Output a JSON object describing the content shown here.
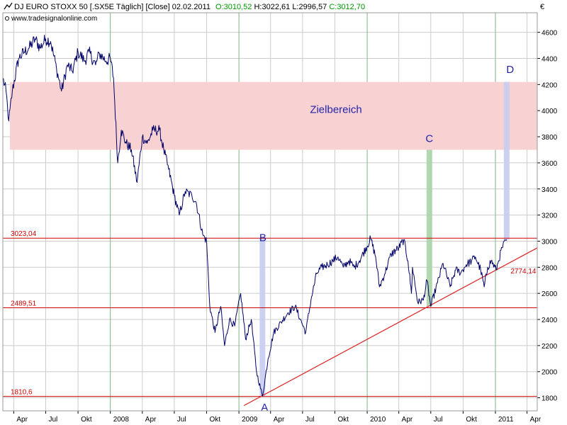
{
  "header": {
    "instrument": "DJ EURO STOXX 50 [.SX5E  Täglich] [Close] 02.02.2011",
    "open": "O:3010,52",
    "high": "H:3022,61",
    "low": "L:2996,57",
    "close": "C:3012,70",
    "source": "www.tradesignalonline.com",
    "currency": "€"
  },
  "colors": {
    "price_line": "#000066",
    "level_line": "#cc0000",
    "trend_line": "#dd2222",
    "target_zone": "#f8d2d2",
    "bar_blue": "#c8ccf0",
    "bar_green": "#a8d4a8",
    "grid_year": "#7fb57f",
    "grid": "#cccccc",
    "label_blue": "#2222aa"
  },
  "chart_data": {
    "type": "line",
    "title": "DJ EURO STOXX 50",
    "xlabel": "",
    "ylabel": "€",
    "x_range": [
      "2007-03-01",
      "2011-04-30"
    ],
    "ylim": [
      1700,
      4750
    ],
    "y_ticks": [
      1800,
      2000,
      2200,
      2400,
      2600,
      2800,
      3000,
      3200,
      3400,
      3600,
      3800,
      4000,
      4200,
      4400,
      4600
    ],
    "y_tick_labels": [
      "1800",
      "2000",
      "2200",
      "2400",
      "2600",
      "2800",
      "3000",
      "3200",
      "3400",
      "3600",
      "3800",
      "4000",
      "4200",
      "4400",
      "4600"
    ],
    "x_ticks": [
      {
        "date": "2007-04-01",
        "label": "Apr",
        "year": false
      },
      {
        "date": "2007-07-01",
        "label": "Jul",
        "year": false
      },
      {
        "date": "2007-10-01",
        "label": "Okt",
        "year": false
      },
      {
        "date": "2008-01-01",
        "label": "2008",
        "year": true
      },
      {
        "date": "2008-04-01",
        "label": "Apr",
        "year": false
      },
      {
        "date": "2008-07-01",
        "label": "Jul",
        "year": false
      },
      {
        "date": "2008-10-01",
        "label": "Okt",
        "year": false
      },
      {
        "date": "2009-01-01",
        "label": "2009",
        "year": true
      },
      {
        "date": "2009-04-01",
        "label": "Apr",
        "year": false
      },
      {
        "date": "2009-07-01",
        "label": "Jul",
        "year": false
      },
      {
        "date": "2009-10-01",
        "label": "Okt",
        "year": false
      },
      {
        "date": "2010-01-01",
        "label": "2010",
        "year": true
      },
      {
        "date": "2010-04-01",
        "label": "Apr",
        "year": false
      },
      {
        "date": "2010-07-01",
        "label": "Jul",
        "year": false
      },
      {
        "date": "2010-10-01",
        "label": "Okt",
        "year": false
      },
      {
        "date": "2011-01-01",
        "label": "2011",
        "year": true
      },
      {
        "date": "2011-04-01",
        "label": "Apr",
        "year": false
      }
    ],
    "series": [
      {
        "points": [
          [
            "2007-03-01",
            4250
          ],
          [
            "2007-03-10",
            4150
          ],
          [
            "2007-03-18",
            3920
          ],
          [
            "2007-03-28",
            4150
          ],
          [
            "2007-04-15",
            4400
          ],
          [
            "2007-05-01",
            4450
          ],
          [
            "2007-05-15",
            4480
          ],
          [
            "2007-06-01",
            4550
          ],
          [
            "2007-06-15",
            4480
          ],
          [
            "2007-07-01",
            4550
          ],
          [
            "2007-07-15",
            4530
          ],
          [
            "2007-08-01",
            4320
          ],
          [
            "2007-08-15",
            4150
          ],
          [
            "2007-09-01",
            4350
          ],
          [
            "2007-09-15",
            4300
          ],
          [
            "2007-10-01",
            4450
          ],
          [
            "2007-10-20",
            4380
          ],
          [
            "2007-11-01",
            4450
          ],
          [
            "2007-11-20",
            4350
          ],
          [
            "2007-12-01",
            4440
          ],
          [
            "2007-12-20",
            4380
          ],
          [
            "2008-01-01",
            4400
          ],
          [
            "2008-01-10",
            4250
          ],
          [
            "2008-01-22",
            3600
          ],
          [
            "2008-02-01",
            3850
          ],
          [
            "2008-02-15",
            3750
          ],
          [
            "2008-03-01",
            3700
          ],
          [
            "2008-03-17",
            3450
          ],
          [
            "2008-04-01",
            3800
          ],
          [
            "2008-04-15",
            3750
          ],
          [
            "2008-05-01",
            3850
          ],
          [
            "2008-05-20",
            3850
          ],
          [
            "2008-06-01",
            3700
          ],
          [
            "2008-06-15",
            3550
          ],
          [
            "2008-07-01",
            3350
          ],
          [
            "2008-07-15",
            3200
          ],
          [
            "2008-08-01",
            3380
          ],
          [
            "2008-08-20",
            3350
          ],
          [
            "2008-09-01",
            3300
          ],
          [
            "2008-09-20",
            3050
          ],
          [
            "2008-10-01",
            3000
          ],
          [
            "2008-10-10",
            2500
          ],
          [
            "2008-10-25",
            2300
          ],
          [
            "2008-11-10",
            2500
          ],
          [
            "2008-11-21",
            2200
          ],
          [
            "2008-12-05",
            2400
          ],
          [
            "2008-12-20",
            2350
          ],
          [
            "2009-01-06",
            2600
          ],
          [
            "2009-01-20",
            2250
          ],
          [
            "2009-02-05",
            2400
          ],
          [
            "2009-02-20",
            2000
          ],
          [
            "2009-03-09",
            1810
          ],
          [
            "2009-03-25",
            2100
          ],
          [
            "2009-04-10",
            2300
          ],
          [
            "2009-05-01",
            2380
          ],
          [
            "2009-05-20",
            2450
          ],
          [
            "2009-06-10",
            2500
          ],
          [
            "2009-06-25",
            2400
          ],
          [
            "2009-07-10",
            2300
          ],
          [
            "2009-07-25",
            2550
          ],
          [
            "2009-08-10",
            2750
          ],
          [
            "2009-08-25",
            2800
          ],
          [
            "2009-09-10",
            2820
          ],
          [
            "2009-09-25",
            2850
          ],
          [
            "2009-10-10",
            2880
          ],
          [
            "2009-10-25",
            2800
          ],
          [
            "2009-11-10",
            2850
          ],
          [
            "2009-11-25",
            2800
          ],
          [
            "2009-12-10",
            2850
          ],
          [
            "2010-01-11",
            3020
          ],
          [
            "2010-01-25",
            2880
          ],
          [
            "2010-02-05",
            2650
          ],
          [
            "2010-02-20",
            2750
          ],
          [
            "2010-03-10",
            2900
          ],
          [
            "2010-04-01",
            2950
          ],
          [
            "2010-04-15",
            3010
          ],
          [
            "2010-04-27",
            2850
          ],
          [
            "2010-05-07",
            2600
          ],
          [
            "2010-05-10",
            2800
          ],
          [
            "2010-05-25",
            2530
          ],
          [
            "2010-06-10",
            2550
          ],
          [
            "2010-06-20",
            2700
          ],
          [
            "2010-07-01",
            2500
          ],
          [
            "2010-07-20",
            2680
          ],
          [
            "2010-08-05",
            2830
          ],
          [
            "2010-08-25",
            2650
          ],
          [
            "2010-09-10",
            2780
          ],
          [
            "2010-09-25",
            2760
          ],
          [
            "2010-10-10",
            2820
          ],
          [
            "2010-10-25",
            2850
          ],
          [
            "2010-11-05",
            2880
          ],
          [
            "2010-11-20",
            2780
          ],
          [
            "2010-11-30",
            2650
          ],
          [
            "2010-12-10",
            2800
          ],
          [
            "2010-12-20",
            2850
          ],
          [
            "2011-01-03",
            2780
          ],
          [
            "2011-01-10",
            2850
          ],
          [
            "2011-01-20",
            2950
          ],
          [
            "2011-02-02",
            3012
          ]
        ]
      }
    ],
    "target_zone": {
      "label": "Zielbereich",
      "from": 3700,
      "to": 4220,
      "start": "2007-03-01",
      "end": "2011-05-01"
    },
    "levels": [
      {
        "value": 3023.04,
        "label": "3023,04"
      },
      {
        "value": 2489.51,
        "label": "2489,51"
      },
      {
        "value": 1810.6,
        "label": "1810,6"
      }
    ],
    "trendline": {
      "from": [
        "2009-01-15",
        1740
      ],
      "to": [
        "2011-05-01",
        2950
      ],
      "label": "2774,14",
      "label_at": [
        "2011-02-05",
        2774
      ]
    },
    "markers": [
      {
        "label": "A",
        "date": "2009-03-15",
        "value": 1700,
        "bar": null
      },
      {
        "label": "B",
        "date": "2009-03-10",
        "value": 3000,
        "bar": {
          "date": "2009-03-09",
          "from": 1810,
          "to": 3023,
          "color": "blue"
        }
      },
      {
        "label": "C",
        "date": "2010-06-27",
        "value": 3760,
        "bar": {
          "date": "2010-06-27",
          "from": 2500,
          "to": 3700,
          "color": "green"
        }
      },
      {
        "label": "D",
        "date": "2011-02-12",
        "value": 4290,
        "bar": {
          "date": "2011-02-02",
          "from": 3012,
          "to": 4220,
          "color": "blue"
        }
      }
    ]
  }
}
